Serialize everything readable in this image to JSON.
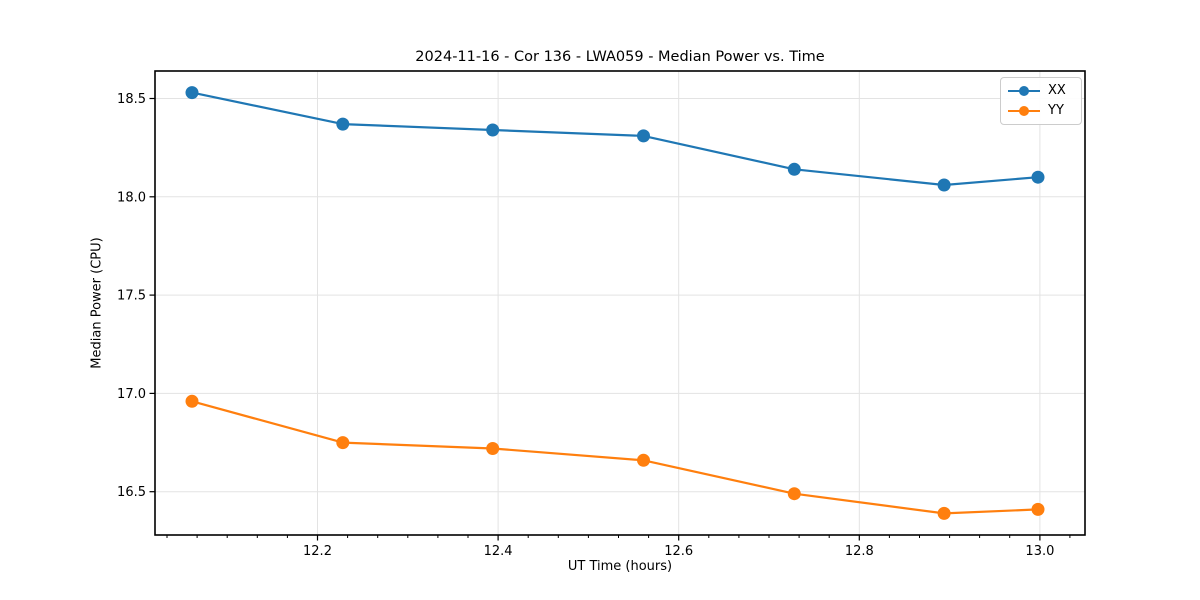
{
  "chart_data": {
    "type": "line",
    "title": "2024-11-16 - Cor 136 - LWA059 - Median Power vs. Time",
    "xlabel": "UT Time (hours)",
    "ylabel": "Median Power (CPU)",
    "x": [
      12.061,
      12.228,
      12.394,
      12.561,
      12.728,
      12.894,
      12.998
    ],
    "series": [
      {
        "name": "XX",
        "color": "#1f77b4",
        "values": [
          18.53,
          18.37,
          18.34,
          18.31,
          18.14,
          18.06,
          18.1
        ]
      },
      {
        "name": "YY",
        "color": "#ff7f0e",
        "values": [
          16.96,
          16.75,
          16.72,
          16.66,
          16.49,
          16.39,
          16.41
        ]
      }
    ],
    "xlim": [
      12.02,
      13.05
    ],
    "ylim": [
      16.28,
      18.64
    ],
    "xticks": [
      12.2,
      12.4,
      12.6,
      12.8,
      13.0
    ],
    "yticks": [
      16.5,
      17.0,
      17.5,
      18.0,
      18.5
    ],
    "x_minor_step": 0.0333333,
    "grid": true,
    "legend_position": "top-right",
    "marker": "circle",
    "marker_radius": 6.5,
    "line_width": 2.2,
    "colors": {
      "grid": "#e3e3e3",
      "spine": "#000000",
      "tick": "#000000",
      "legend_border": "#cccccc"
    }
  }
}
